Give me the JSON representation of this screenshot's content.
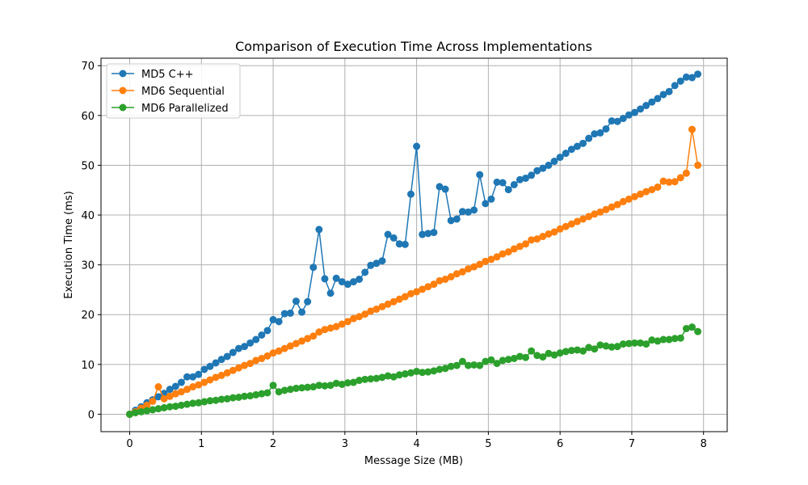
{
  "chart_data": {
    "type": "line",
    "title": "Comparison of Execution Time Across Implementations",
    "xlabel": "Message Size (MB)",
    "ylabel": "Execution Time (ms)",
    "xlim": [
      -0.4,
      8.33
    ],
    "ylim": [
      -3.5,
      71.5
    ],
    "xticks": [
      0,
      1,
      2,
      3,
      4,
      5,
      6,
      7,
      8
    ],
    "yticks": [
      0,
      10,
      20,
      30,
      40,
      50,
      60,
      70
    ],
    "grid": true,
    "legend_position": "top-left",
    "series": [
      {
        "name": "MD5 C++",
        "color": "#1f77b4",
        "x": [
          0,
          0.08,
          0.16,
          0.24,
          0.32,
          0.4,
          0.48,
          0.56,
          0.64,
          0.72,
          0.8,
          0.88,
          0.96,
          1.04,
          1.12,
          1.2,
          1.28,
          1.36,
          1.44,
          1.52,
          1.6,
          1.68,
          1.76,
          1.84,
          1.92,
          2.0,
          2.08,
          2.16,
          2.24,
          2.32,
          2.4,
          2.48,
          2.56,
          2.64,
          2.72,
          2.8,
          2.88,
          2.96,
          3.04,
          3.12,
          3.2,
          3.28,
          3.36,
          3.44,
          3.52,
          3.6,
          3.68,
          3.76,
          3.84,
          3.92,
          4.0,
          4.08,
          4.16,
          4.24,
          4.32,
          4.4,
          4.48,
          4.56,
          4.64,
          4.72,
          4.8,
          4.88,
          4.96,
          5.04,
          5.12,
          5.2,
          5.28,
          5.36,
          5.44,
          5.52,
          5.6,
          5.68,
          5.76,
          5.84,
          5.92,
          6.0,
          6.08,
          6.16,
          6.24,
          6.32,
          6.4,
          6.48,
          6.56,
          6.64,
          6.72,
          6.8,
          6.88,
          6.96,
          7.04,
          7.12,
          7.2,
          7.28,
          7.36,
          7.44,
          7.52,
          7.6,
          7.68,
          7.76,
          7.84,
          7.92
        ],
        "y": [
          0,
          0.8,
          1.5,
          2.3,
          2.9,
          3.5,
          4.2,
          5.0,
          5.6,
          6.4,
          7.5,
          7.5,
          8.0,
          9.0,
          9.6,
          10.3,
          11.0,
          11.6,
          12.4,
          13.2,
          13.6,
          14.3,
          15.0,
          15.9,
          16.8,
          19.0,
          18.6,
          20.2,
          20.3,
          22.7,
          20.5,
          22.6,
          29.5,
          37.1,
          27.2,
          24.3,
          27.3,
          26.6,
          26.1,
          26.6,
          27.1,
          28.5,
          29.9,
          30.3,
          30.8,
          36.1,
          35.4,
          34.2,
          34.1,
          44.2,
          53.8,
          36.1,
          36.3,
          36.5,
          45.7,
          45.2,
          38.9,
          39.2,
          40.7,
          40.6,
          41.0,
          48.1,
          42.3,
          43.2,
          46.6,
          46.5,
          45.1,
          46.1,
          47.1,
          47.4,
          48.0,
          48.9,
          49.4,
          50.0,
          50.8,
          51.6,
          52.4,
          53.2,
          53.8,
          54.4,
          55.4,
          56.3,
          56.5,
          57.3,
          58.9,
          58.8,
          59.4,
          60.1,
          60.6,
          61.3,
          62.0,
          62.7,
          63.4,
          64.2,
          64.8,
          66.0,
          66.9,
          67.7,
          67.6,
          68.3
        ]
      },
      {
        "name": "MD6 Sequential",
        "color": "#ff7f0e",
        "x": [
          0,
          0.08,
          0.16,
          0.24,
          0.32,
          0.4,
          0.48,
          0.56,
          0.64,
          0.72,
          0.8,
          0.88,
          0.96,
          1.04,
          1.12,
          1.2,
          1.28,
          1.36,
          1.44,
          1.52,
          1.6,
          1.68,
          1.76,
          1.84,
          1.92,
          2.0,
          2.08,
          2.16,
          2.24,
          2.32,
          2.4,
          2.48,
          2.56,
          2.64,
          2.72,
          2.8,
          2.88,
          2.96,
          3.04,
          3.12,
          3.2,
          3.28,
          3.36,
          3.44,
          3.52,
          3.6,
          3.68,
          3.76,
          3.84,
          3.92,
          4.0,
          4.08,
          4.16,
          4.24,
          4.32,
          4.4,
          4.48,
          4.56,
          4.64,
          4.72,
          4.8,
          4.88,
          4.96,
          5.04,
          5.12,
          5.2,
          5.28,
          5.36,
          5.44,
          5.52,
          5.6,
          5.68,
          5.76,
          5.84,
          5.92,
          6.0,
          6.08,
          6.16,
          6.24,
          6.32,
          6.4,
          6.48,
          6.56,
          6.64,
          6.72,
          6.8,
          6.88,
          6.96,
          7.04,
          7.12,
          7.2,
          7.28,
          7.36,
          7.44,
          7.52,
          7.6,
          7.68,
          7.76,
          7.84,
          7.92
        ],
        "y": [
          0,
          0.5,
          1.2,
          1.8,
          2.6,
          5.5,
          3.1,
          3.6,
          4.1,
          4.5,
          5.0,
          5.5,
          5.9,
          6.4,
          6.9,
          7.4,
          7.8,
          8.3,
          8.8,
          9.3,
          9.8,
          10.2,
          10.8,
          11.2,
          11.7,
          12.3,
          12.7,
          13.2,
          13.7,
          14.2,
          14.7,
          15.2,
          15.7,
          16.5,
          17.0,
          17.3,
          17.6,
          18.1,
          18.6,
          19.2,
          19.6,
          20.1,
          20.7,
          21.1,
          21.6,
          22.1,
          22.6,
          23.1,
          23.6,
          24.2,
          24.6,
          25.1,
          25.6,
          26.1,
          26.8,
          27.1,
          27.6,
          28.2,
          28.6,
          29.2,
          29.6,
          30.1,
          30.7,
          31.1,
          31.6,
          32.2,
          32.6,
          33.2,
          33.7,
          34.2,
          35.0,
          35.2,
          35.7,
          36.2,
          36.6,
          37.2,
          37.7,
          38.2,
          38.7,
          39.2,
          39.7,
          40.2,
          40.6,
          41.1,
          41.6,
          42.1,
          42.7,
          43.2,
          43.7,
          44.2,
          44.7,
          45.1,
          45.6,
          46.8,
          46.6,
          46.7,
          47.5,
          48.4,
          57.2,
          50.0
        ]
      },
      {
        "name": "MD6 Parallelized",
        "color": "#2ca02c",
        "x": [
          0,
          0.08,
          0.16,
          0.24,
          0.32,
          0.4,
          0.48,
          0.56,
          0.64,
          0.72,
          0.8,
          0.88,
          0.96,
          1.04,
          1.12,
          1.2,
          1.28,
          1.36,
          1.44,
          1.52,
          1.6,
          1.68,
          1.76,
          1.84,
          1.92,
          2.0,
          2.08,
          2.16,
          2.24,
          2.32,
          2.4,
          2.48,
          2.56,
          2.64,
          2.72,
          2.8,
          2.88,
          2.96,
          3.04,
          3.12,
          3.2,
          3.28,
          3.36,
          3.44,
          3.52,
          3.6,
          3.68,
          3.76,
          3.84,
          3.92,
          4.0,
          4.08,
          4.16,
          4.24,
          4.32,
          4.4,
          4.48,
          4.56,
          4.64,
          4.72,
          4.8,
          4.88,
          4.96,
          5.04,
          5.12,
          5.2,
          5.28,
          5.36,
          5.44,
          5.52,
          5.6,
          5.68,
          5.76,
          5.84,
          5.92,
          6.0,
          6.08,
          6.16,
          6.24,
          6.32,
          6.4,
          6.48,
          6.56,
          6.64,
          6.72,
          6.8,
          6.88,
          6.96,
          7.04,
          7.12,
          7.2,
          7.28,
          7.36,
          7.44,
          7.52,
          7.6,
          7.68,
          7.76,
          7.84,
          7.92
        ],
        "y": [
          0,
          0.3,
          0.5,
          0.7,
          0.9,
          1.1,
          1.3,
          1.5,
          1.6,
          1.8,
          2.0,
          2.2,
          2.3,
          2.5,
          2.7,
          2.8,
          3.0,
          3.1,
          3.3,
          3.4,
          3.6,
          3.7,
          3.9,
          4.1,
          4.3,
          5.8,
          4.5,
          4.8,
          5.0,
          5.2,
          5.3,
          5.4,
          5.5,
          5.8,
          5.7,
          5.8,
          6.2,
          6.0,
          6.3,
          6.4,
          6.8,
          7.0,
          7.1,
          7.2,
          7.4,
          7.7,
          7.5,
          7.9,
          8.1,
          8.3,
          8.6,
          8.4,
          8.5,
          8.7,
          9.0,
          9.2,
          9.6,
          9.8,
          10.6,
          9.8,
          9.9,
          9.8,
          10.6,
          10.9,
          10.2,
          10.8,
          11.0,
          11.2,
          11.6,
          11.4,
          12.7,
          11.8,
          11.5,
          12.2,
          11.9,
          12.3,
          12.6,
          12.8,
          12.9,
          12.7,
          13.4,
          13.1,
          13.9,
          13.7,
          13.5,
          13.6,
          14.1,
          14.2,
          14.3,
          14.3,
          14.1,
          14.9,
          14.7,
          15.0,
          15.0,
          15.2,
          15.3,
          17.2,
          17.5,
          16.6
        ]
      }
    ]
  }
}
